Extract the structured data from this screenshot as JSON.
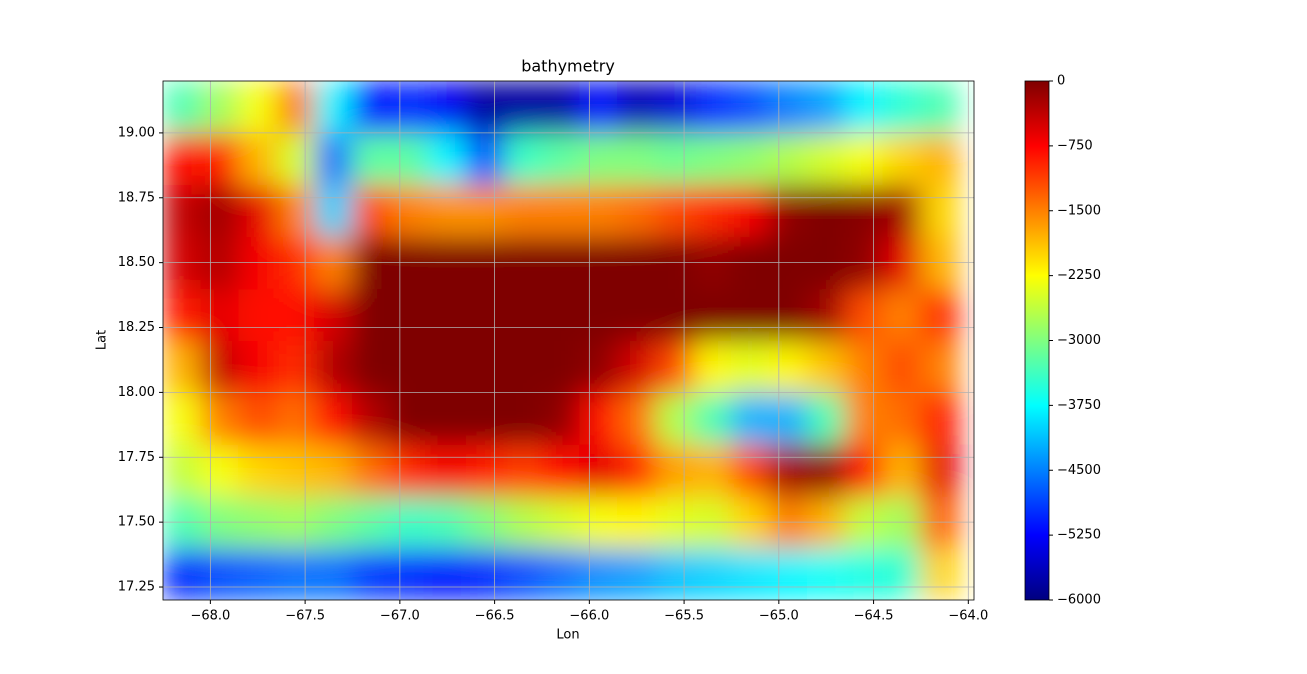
{
  "chart_data": {
    "type": "contour",
    "title": "bathymetry",
    "x_label": "Lon",
    "y_label": "Lat",
    "colormap": "jet",
    "grid": true,
    "xlim": [
      -68.25,
      -63.97
    ],
    "ylim": [
      17.2,
      19.2
    ],
    "zlim": [
      -6000,
      0
    ],
    "xticks": [
      {
        "value": -68,
        "label": "−68.0"
      },
      {
        "value": -67.5,
        "label": "−67.5"
      },
      {
        "value": -67,
        "label": "−67.0"
      },
      {
        "value": -66.5,
        "label": "−66.5"
      },
      {
        "value": -66,
        "label": "−66.0"
      },
      {
        "value": -65.5,
        "label": "−65.5"
      },
      {
        "value": -65,
        "label": "−65.0"
      },
      {
        "value": -64.5,
        "label": "−64.5"
      },
      {
        "value": -64,
        "label": "−64.0"
      }
    ],
    "yticks": [
      17.25,
      {
        "value": 17.5,
        "label": "17.50"
      },
      17.75,
      {
        "value": 18,
        "label": "18.00"
      },
      18.25,
      {
        "value": 18.5,
        "label": "18.50"
      },
      18.75,
      {
        "value": 19,
        "label": "19.00"
      }
    ],
    "zticks": [
      0,
      {
        "value": -750,
        "label": "−750"
      },
      {
        "value": -1500,
        "label": "−1500"
      },
      {
        "value": -2250,
        "label": "−2250"
      },
      {
        "value": -3000,
        "label": "−3000"
      },
      {
        "value": -3750,
        "label": "−3750"
      },
      {
        "value": -4500,
        "label": "−4500"
      },
      {
        "value": -5250,
        "label": "−5250"
      },
      {
        "value": -6000,
        "label": "−6000"
      }
    ],
    "x": [
      -68.15,
      -67.95,
      -67.75,
      -67.55,
      -67.35,
      -67.15,
      -66.95,
      -66.75,
      -66.55,
      -66.35,
      -66.15,
      -65.95,
      -65.75,
      -65.55,
      -65.35,
      -65.15,
      -64.95,
      -64.75,
      -64.55,
      -64.35,
      -64.15
    ],
    "y": [
      17.3,
      17.5,
      17.7,
      17.9,
      18.1,
      18.3,
      18.5,
      18.7,
      18.9,
      19.1
    ],
    "z": [
      [
        -5000,
        -4800,
        -4700,
        -4600,
        -4600,
        -4900,
        -5000,
        -5100,
        -5000,
        -4800,
        -4600,
        -4400,
        -4300,
        -4100,
        -4000,
        -3900,
        -3800,
        -3700,
        -3600,
        -3500,
        -2000
      ],
      [
        -3300,
        -3000,
        -2900,
        -2800,
        -3000,
        -3200,
        -3400,
        -3300,
        -3000,
        -2700,
        -2500,
        -2300,
        -2200,
        -2400,
        -2500,
        -2000,
        -1500,
        -1800,
        -2600,
        -2800,
        -1300
      ],
      [
        -2600,
        -2300,
        -2000,
        -1900,
        -1800,
        -1400,
        -1000,
        -700,
        -900,
        -1100,
        -800,
        -600,
        -1000,
        -1700,
        -1800,
        -1200,
        -200,
        -100,
        -800,
        -1800,
        -600
      ],
      [
        -2300,
        -1500,
        -1200,
        -1400,
        -800,
        -300,
        0,
        0,
        0,
        0,
        -100,
        -800,
        -1400,
        -2700,
        -3300,
        -4200,
        -4200,
        -3300,
        -1500,
        -1400,
        -900
      ],
      [
        -1800,
        -400,
        -700,
        -1000,
        -300,
        0,
        0,
        0,
        0,
        0,
        0,
        -100,
        -500,
        -1200,
        -2200,
        -2400,
        -2200,
        -1900,
        -1500,
        -1200,
        -1500
      ],
      [
        -900,
        -600,
        -800,
        -800,
        -500,
        0,
        0,
        0,
        0,
        0,
        0,
        0,
        0,
        0,
        0,
        0,
        0,
        -200,
        -1200,
        -1500,
        -1000
      ],
      [
        -500,
        -300,
        -700,
        -1000,
        -1500,
        0,
        0,
        0,
        0,
        0,
        0,
        0,
        0,
        0,
        -100,
        0,
        0,
        0,
        -100,
        -600,
        -1800
      ],
      [
        -400,
        -200,
        -600,
        -1500,
        -4000,
        -1200,
        -1500,
        -1600,
        -1600,
        -1500,
        -1500,
        -1500,
        -1400,
        -1200,
        -1000,
        -700,
        -100,
        0,
        -50,
        -200,
        -2000
      ],
      [
        -800,
        -900,
        -1800,
        -2500,
        -4600,
        -3200,
        -3200,
        -3800,
        -4800,
        -3400,
        -3200,
        -3000,
        -3000,
        -3100,
        -3000,
        -2900,
        -2700,
        -2500,
        -2300,
        -2000,
        -1800
      ],
      [
        -3300,
        -2800,
        -2300,
        -1500,
        -3800,
        -5200,
        -5000,
        -5300,
        -5800,
        -5800,
        -5800,
        -5200,
        -5700,
        -5500,
        -5000,
        -4800,
        -4500,
        -4300,
        -3800,
        -3500,
        -3300
      ]
    ]
  }
}
